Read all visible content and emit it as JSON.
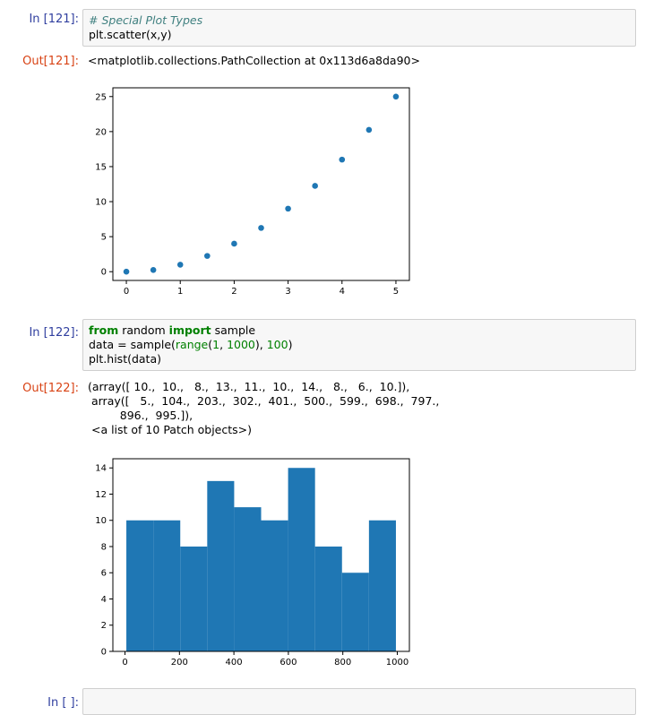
{
  "cells": [
    {
      "in_prompt": "In [121]:",
      "code": {
        "comment": "# Special Plot Types",
        "line2": "plt.scatter(x,y)"
      },
      "out_prompt": "Out[121]:",
      "output_text": "<matplotlib.collections.PathCollection at 0x113d6a8da90>"
    },
    {
      "in_prompt": "In [122]:",
      "code": {
        "l1_kw1": "from",
        "l1_mid": " random ",
        "l1_kw2": "import",
        "l1_end": " sample",
        "l2_a": "data = sample(",
        "l2_range": "range",
        "l2_b": "(",
        "l2_n1": "1",
        "l2_c": ", ",
        "l2_n2": "1000",
        "l2_d": "), ",
        "l2_n3": "100",
        "l2_e": ")",
        "line3": "plt.hist(data)"
      },
      "out_prompt": "Out[122]:",
      "output_lines": [
        "(array([ 10.,  10.,   8.,  13.,  11.,  10.,  14.,   8.,   6.,  10.]),",
        " array([   5.,  104.,  203.,  302.,  401.,  500.,  599.,  698.,  797.,",
        "         896.,  995.]),",
        " <a list of 10 Patch objects>)"
      ]
    },
    {
      "in_prompt": "In [ ]:"
    }
  ],
  "chart_data": [
    {
      "type": "scatter",
      "x": [
        0,
        0.5,
        1,
        1.5,
        2,
        2.5,
        3,
        3.5,
        4,
        4.5,
        5
      ],
      "y": [
        0,
        0.25,
        1,
        2.25,
        4,
        6.25,
        9,
        12.25,
        16,
        20.25,
        25
      ],
      "xlim": [
        -0.25,
        5.25
      ],
      "ylim": [
        -1.25,
        26.25
      ],
      "xticks": [
        "0",
        "1",
        "2",
        "3",
        "4",
        "5"
      ],
      "yticks": [
        "0",
        "5",
        "10",
        "15",
        "20",
        "25"
      ],
      "color": "#1f77b4",
      "title": "",
      "xlabel": "",
      "ylabel": ""
    },
    {
      "type": "bar",
      "bin_edges": [
        5,
        104,
        203,
        302,
        401,
        500,
        599,
        698,
        797,
        896,
        995
      ],
      "values": [
        10,
        10,
        8,
        13,
        11,
        10,
        14,
        8,
        6,
        10
      ],
      "xlim": [
        -44.5,
        1044.5
      ],
      "ylim": [
        0,
        14.7
      ],
      "xticks": [
        "0",
        "200",
        "400",
        "600",
        "800",
        "1000"
      ],
      "yticks": [
        "0",
        "2",
        "4",
        "6",
        "8",
        "10",
        "12",
        "14"
      ],
      "color": "#1f77b4",
      "title": "",
      "xlabel": "",
      "ylabel": ""
    }
  ]
}
